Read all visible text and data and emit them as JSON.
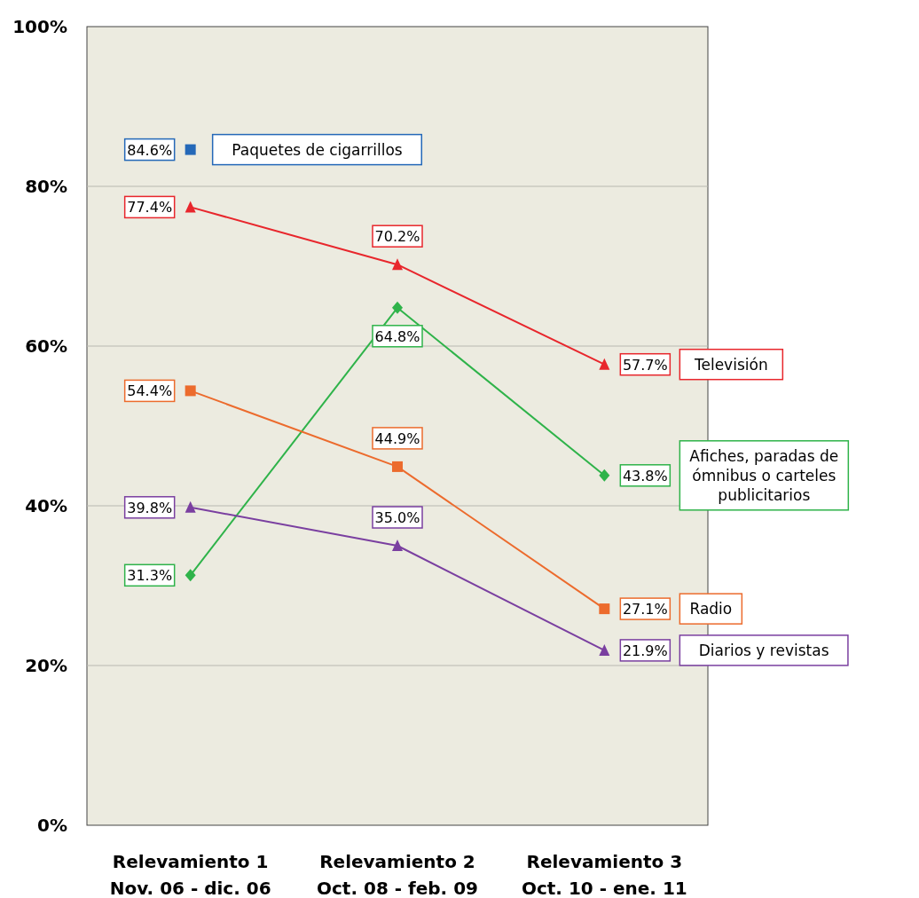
{
  "chart_data": {
    "type": "line",
    "categories": [
      "Relevamiento 1\nNov. 06 - dic. 06",
      "Relevamiento 2\nOct. 08 - feb. 09",
      "Relevamiento 3\nOct. 10 - ene. 11"
    ],
    "series": [
      {
        "name": "Paquetes de cigarrillos",
        "color": "#2468b8",
        "marker": "square",
        "values": [
          84.6,
          null,
          null
        ],
        "value_labels": [
          "84.6%",
          null,
          null
        ]
      },
      {
        "name": "Televisión",
        "color": "#e8262c",
        "marker": "triangle",
        "values": [
          77.4,
          70.2,
          57.7
        ],
        "value_labels": [
          "77.4%",
          "70.2%",
          "57.7%"
        ]
      },
      {
        "name": "Afiches, paradas de ómnibus o carteles publicitarios",
        "color": "#2fb34a",
        "marker": "diamond",
        "values": [
          31.3,
          64.8,
          43.8
        ],
        "value_labels": [
          "31.3%",
          "64.8%",
          "43.8%"
        ]
      },
      {
        "name": "Radio",
        "color": "#ec6b2d",
        "marker": "square",
        "values": [
          54.4,
          44.9,
          27.1
        ],
        "value_labels": [
          "54.4%",
          "44.9%",
          "27.1%"
        ]
      },
      {
        "name": "Diarios y revistas",
        "color": "#7a3fa0",
        "marker": "triangle",
        "values": [
          39.8,
          35.0,
          21.9
        ],
        "value_labels": [
          "39.8%",
          "35.0%",
          "21.9%"
        ]
      }
    ],
    "ylim": [
      0,
      100
    ],
    "yticks": [
      {
        "value": 0,
        "label": "0%"
      },
      {
        "value": 20,
        "label": "20%"
      },
      {
        "value": 40,
        "label": "40%"
      },
      {
        "value": 60,
        "label": "60%"
      },
      {
        "value": 80,
        "label": "80%"
      },
      {
        "value": 100,
        "label": "100%"
      }
    ],
    "grid": "y",
    "line_style": "solid",
    "legend": "right"
  }
}
